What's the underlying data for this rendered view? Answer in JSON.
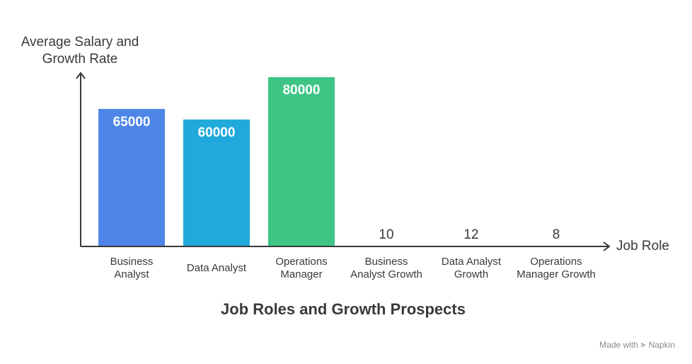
{
  "chart_data": {
    "type": "bar",
    "title": "Job Roles and Growth Prospects",
    "xlabel": "Job Role",
    "ylabel": "Average Salary and Growth Rate",
    "categories": [
      [
        "Business",
        "Analyst"
      ],
      [
        "Data Analyst"
      ],
      [
        "Operations",
        "Manager"
      ],
      [
        "Business",
        "Analyst Growth"
      ],
      [
        "Data Analyst",
        "Growth"
      ],
      [
        "Operations",
        "Manager Growth"
      ]
    ],
    "values": [
      65000,
      60000,
      80000,
      10,
      12,
      8
    ],
    "value_labels": [
      "65000",
      "60000",
      "80000",
      "10",
      "12",
      "8"
    ],
    "colors": [
      "#4e86e8",
      "#21a9db",
      "#3ec585",
      "#f26a5f",
      "#f2a53a",
      "#8a63d2"
    ],
    "ylim": [
      0,
      80000
    ],
    "grid": false,
    "legend": "none"
  },
  "footer": {
    "made_with": "Made with",
    "brand": "Napkin",
    "brand_icon": "napkin-logo-icon"
  }
}
